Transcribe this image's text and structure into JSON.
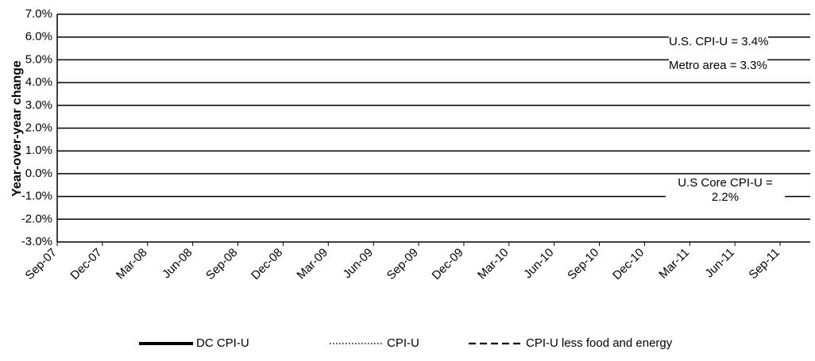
{
  "chart_data": {
    "type": "line",
    "y_label": "Year-over-year change",
    "categories": [
      "Sep-07",
      null,
      null,
      "Dec-07",
      null,
      null,
      "Mar-08",
      null,
      null,
      "Jun-08",
      null,
      null,
      "Sep-08",
      null,
      null,
      "Dec-08",
      null,
      null,
      "Mar-09",
      null,
      null,
      "Jun-09",
      null,
      null,
      "Sep-09",
      null,
      null,
      "Dec-09",
      null,
      null,
      "Mar-10",
      null,
      null,
      "Jun-10",
      null,
      null,
      "Sep-10",
      null,
      null,
      "Dec-10",
      null,
      null,
      "Mar-11",
      null,
      null,
      "Jun-11",
      null,
      null,
      "Sep-11",
      null,
      null
    ],
    "series": [
      {
        "name": "DC CPI-U",
        "color": "#000000",
        "dash": "solid",
        "values": [
          3.5,
          3.5,
          4.5,
          4.5,
          4.9,
          4.9,
          4.7,
          4.7,
          5.0,
          5.0,
          5.7,
          5.7,
          5.4,
          5.4,
          2.5,
          2.5,
          1.0,
          1.0,
          0.4,
          0.4,
          -0.2,
          -0.2,
          -0.9,
          -0.9,
          -0.8,
          -0.8,
          1.6,
          1.6,
          2.6,
          2.6,
          2.3,
          2.3,
          2.2,
          1.9,
          1.9,
          0.8,
          1.1,
          1.3,
          1.4,
          1.6,
          2.1,
          2.3,
          2.9,
          3.0,
          3.6,
          3.9,
          4.0,
          4.1,
          3.8,
          3.5,
          3.3
        ]
      },
      {
        "name": "CPI-U",
        "color": "#000000",
        "dash": "dotted",
        "values": [
          2.8,
          3.5,
          4.3,
          4.1,
          4.3,
          4.0,
          4.0,
          3.9,
          4.2,
          5.0,
          5.6,
          5.4,
          4.9,
          3.7,
          1.1,
          0.1,
          0.0,
          0.2,
          -0.4,
          -0.7,
          -1.3,
          -1.4,
          -2.1,
          -1.5,
          -1.3,
          -0.2,
          1.8,
          2.7,
          2.6,
          2.1,
          2.3,
          2.2,
          2.0,
          1.1,
          1.2,
          1.1,
          1.1,
          1.2,
          1.1,
          1.5,
          1.6,
          2.1,
          2.7,
          3.2,
          3.6,
          3.6,
          3.6,
          3.8,
          3.9,
          3.5,
          3.4
        ]
      },
      {
        "name": "CPI-U less food and energy",
        "color": "#000000",
        "dash": "dashed",
        "values": [
          2.1,
          2.2,
          2.3,
          2.4,
          2.5,
          2.3,
          2.4,
          2.3,
          2.3,
          2.4,
          2.5,
          2.5,
          2.5,
          2.2,
          2.0,
          1.8,
          1.7,
          1.8,
          1.8,
          1.9,
          1.8,
          1.7,
          1.5,
          1.4,
          1.5,
          1.7,
          1.7,
          1.8,
          1.6,
          1.3,
          1.1,
          0.9,
          0.9,
          0.9,
          0.9,
          0.9,
          0.8,
          0.6,
          0.8,
          0.8,
          1.0,
          1.1,
          1.2,
          1.3,
          1.5,
          1.6,
          1.8,
          2.0,
          2.0,
          2.1,
          2.2
        ]
      }
    ],
    "ylim": [
      -3,
      7
    ],
    "yticks": [
      {
        "value": -3,
        "label": "-3.0%"
      },
      {
        "value": -2,
        "label": "-2.0%"
      },
      {
        "value": -1,
        "label": "-1.0%"
      },
      {
        "value": 0,
        "label": "0.0%"
      },
      {
        "value": 1,
        "label": "1.0%"
      },
      {
        "value": 2,
        "label": "2.0%"
      },
      {
        "value": 3,
        "label": "3.0%"
      },
      {
        "value": 4,
        "label": "4.0%"
      },
      {
        "value": 5,
        "label": "5.0%"
      },
      {
        "value": 6,
        "label": "6.0%"
      },
      {
        "value": 7,
        "label": "7.0%"
      }
    ],
    "grid": true,
    "legend": "bottom",
    "annotations": [
      "U.S. CPI-U = 3.4%",
      "Metro area = 3.3%",
      "U.S Core CPI-U = 2.2%"
    ]
  }
}
